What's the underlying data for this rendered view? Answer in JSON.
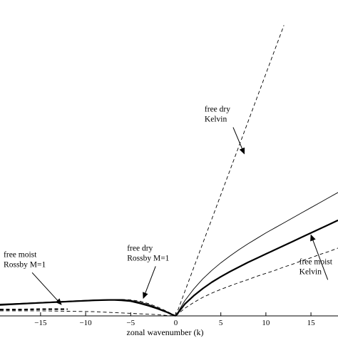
{
  "chart_data": {
    "type": "line",
    "xlabel": "zonal wavenumber (k)",
    "ylabel": "",
    "xlim": [
      -19.5,
      18
    ],
    "ylim": [
      0,
      7.5
    ],
    "x_ticks": [
      -15,
      -10,
      -5,
      0,
      5,
      10,
      15
    ],
    "tick_labels": [
      "−15",
      "−10",
      "−5",
      "0",
      "5",
      "10",
      "15"
    ],
    "grid": false,
    "legend": "none",
    "series": [
      {
        "style": "dashed-thin",
        "x": [
          0,
          2,
          4,
          6,
          8,
          10,
          12
        ],
        "y": [
          0,
          1.15,
          2.3,
          3.45,
          4.6,
          5.75,
          6.9
        ]
      },
      {
        "style": "solid-thin",
        "x": [
          0,
          1,
          2,
          3,
          4,
          5,
          6,
          7,
          8,
          9,
          10,
          11,
          12,
          13,
          14,
          15,
          16,
          17,
          18
        ],
        "y": [
          0,
          0.36,
          0.64,
          0.88,
          1.08,
          1.26,
          1.42,
          1.57,
          1.71,
          1.84,
          1.97,
          2.09,
          2.21,
          2.33,
          2.45,
          2.57,
          2.69,
          2.81,
          2.93
        ]
      },
      {
        "style": "solid-thick",
        "x": [
          0,
          1,
          2,
          3,
          4,
          5,
          6,
          7,
          8,
          9,
          10,
          11,
          12,
          13,
          14,
          15,
          16,
          17,
          18
        ],
        "y": [
          0,
          0.28,
          0.48,
          0.65,
          0.8,
          0.93,
          1.05,
          1.16,
          1.27,
          1.37,
          1.47,
          1.57,
          1.67,
          1.77,
          1.87,
          1.97,
          2.07,
          2.17,
          2.27
        ]
      },
      {
        "style": "dashed-thin",
        "x": [
          0,
          1,
          2,
          3,
          4,
          5,
          6,
          7,
          8,
          9,
          10,
          11,
          12,
          13,
          14,
          15,
          16,
          17,
          18
        ],
        "y": [
          0,
          0.18,
          0.32,
          0.44,
          0.54,
          0.63,
          0.71,
          0.79,
          0.86,
          0.94,
          1.01,
          1.08,
          1.16,
          1.23,
          1.31,
          1.38,
          1.46,
          1.53,
          1.61
        ]
      },
      {
        "style": "solid-thin",
        "x": [
          -19.5,
          -17,
          -15,
          -13,
          -11,
          -9,
          -7,
          -6,
          -5,
          -4,
          -3,
          -2,
          -1,
          -0.5,
          0
        ],
        "y": [
          0.28,
          0.3,
          0.32,
          0.34,
          0.36,
          0.38,
          0.39,
          0.39,
          0.37,
          0.33,
          0.27,
          0.19,
          0.1,
          0.05,
          0
        ]
      },
      {
        "style": "solid-thick",
        "x": [
          -19.5,
          -17,
          -15,
          -13,
          -11,
          -9,
          -7,
          -6,
          -5,
          -4,
          -3,
          -2,
          -1,
          -0.5,
          0
        ],
        "y": [
          0.26,
          0.29,
          0.31,
          0.33,
          0.35,
          0.37,
          0.38,
          0.37,
          0.35,
          0.3,
          0.24,
          0.17,
          0.09,
          0.04,
          0
        ]
      },
      {
        "style": "dashed-thin",
        "x": [
          -6,
          -5,
          -4,
          -3,
          -2,
          -1,
          0
        ],
        "y": [
          0.39,
          0.38,
          0.35,
          0.29,
          0.21,
          0.11,
          0
        ]
      },
      {
        "style": "dashed-thick",
        "x": [
          -19.5,
          -17,
          -15,
          -13,
          -12
        ],
        "y": [
          0.15,
          0.15,
          0.16,
          0.16,
          0.16
        ]
      },
      {
        "style": "dashed-thin",
        "x": [
          -19.5,
          -17,
          -15,
          -12,
          -9,
          -7,
          -5,
          -3,
          -2,
          -1,
          0
        ],
        "y": [
          0.12,
          0.12,
          0.12,
          0.11,
          0.1,
          0.08,
          0.06,
          0.04,
          0.03,
          0.01,
          0
        ]
      }
    ],
    "annotations": [
      {
        "lines": [
          "free dry",
          "Kelvin"
        ],
        "text_at": [
          3.2,
          4.85
        ],
        "arrow_to": [
          7.6,
          3.85
        ]
      },
      {
        "lines": [
          "free moist",
          "Rossby M=1"
        ],
        "text_at": [
          -19.1,
          1.4
        ],
        "arrow_to": [
          -12.7,
          0.27
        ]
      },
      {
        "lines": [
          "free dry",
          "Rossby M=1"
        ],
        "text_at": [
          -5.4,
          1.55
        ],
        "arrow_to": [
          -3.6,
          0.42
        ]
      },
      {
        "lines": [
          "free moist",
          "Kelvin"
        ],
        "text_at": [
          13.7,
          1.23
        ],
        "arrow_to": [
          15.0,
          1.92
        ]
      }
    ]
  }
}
